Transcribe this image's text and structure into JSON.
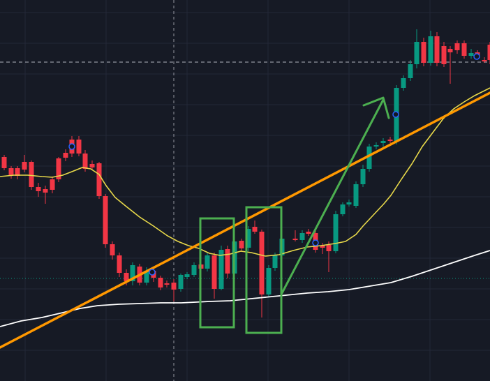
{
  "chart_data": {
    "type": "candlestick",
    "title": "",
    "xlabel": "",
    "ylabel": "",
    "grid": true,
    "ylim": [
      0,
      546
    ],
    "colors": {
      "background": "#161a25",
      "grid": "#232838",
      "up": "#089981",
      "down": "#f23645",
      "ma_fast": "#e8d94a",
      "ma_slow": "#ffffff",
      "trendline": "#ff9800",
      "annotation": "#4caf50",
      "crosshair": "#9598a1",
      "marker": "#2962ff"
    },
    "candles": [
      [
        6,
        225,
        241,
        222,
        244
      ],
      [
        16,
        241,
        251,
        238,
        256
      ],
      [
        25,
        241,
        252,
        238,
        257
      ],
      [
        35,
        232,
        243,
        222,
        247
      ],
      [
        45,
        232,
        268,
        230,
        272
      ],
      [
        55,
        268,
        274,
        262,
        282
      ],
      [
        65,
        271,
        276,
        266,
        292
      ],
      [
        75,
        257,
        272,
        253,
        277
      ],
      [
        84,
        227,
        257,
        225,
        261
      ],
      [
        94,
        219,
        226,
        214,
        231
      ],
      [
        103,
        200,
        220,
        195,
        225
      ],
      [
        113,
        200,
        220,
        195,
        224
      ],
      [
        122,
        220,
        242,
        215,
        246
      ],
      [
        132,
        235,
        240,
        230,
        244
      ],
      [
        142,
        234,
        281,
        232,
        285
      ],
      [
        151,
        281,
        350,
        278,
        355
      ],
      [
        161,
        350,
        366,
        346,
        372
      ],
      [
        171,
        366,
        391,
        362,
        397
      ],
      [
        181,
        391,
        403,
        386,
        409
      ],
      [
        190,
        403,
        380,
        376,
        409
      ],
      [
        200,
        382,
        405,
        378,
        409
      ],
      [
        210,
        405,
        388,
        383,
        409
      ],
      [
        220,
        388,
        398,
        384,
        404
      ],
      [
        230,
        398,
        412,
        395,
        416
      ],
      [
        239,
        406,
        408,
        402,
        412
      ],
      [
        249,
        405,
        415,
        400,
        432
      ],
      [
        259,
        414,
        394,
        392,
        418
      ],
      [
        268,
        397,
        393,
        390,
        400
      ],
      [
        278,
        394,
        380,
        376,
        397
      ],
      [
        288,
        379,
        385,
        376,
        389
      ],
      [
        297,
        385,
        366,
        362,
        389
      ],
      [
        307,
        366,
        414,
        362,
        428
      ],
      [
        317,
        414,
        358,
        352,
        416
      ],
      [
        326,
        357,
        392,
        352,
        399
      ],
      [
        336,
        392,
        346,
        342,
        397
      ],
      [
        346,
        345,
        356,
        342,
        359
      ],
      [
        356,
        355,
        328,
        324,
        360
      ],
      [
        365,
        325,
        332,
        316,
        335
      ],
      [
        375,
        332,
        422,
        329,
        455
      ],
      [
        385,
        422,
        384,
        380,
        426
      ],
      [
        394,
        384,
        366,
        362,
        388
      ],
      [
        404,
        366,
        342,
        339,
        370
      ],
      [
        423,
        342,
        344,
        330,
        346
      ],
      [
        433,
        344,
        334,
        330,
        348
      ],
      [
        442,
        332,
        335,
        328,
        338
      ],
      [
        452,
        334,
        358,
        330,
        362
      ],
      [
        462,
        352,
        355,
        348,
        364
      ],
      [
        471,
        351,
        360,
        346,
        390
      ],
      [
        481,
        360,
        307,
        302,
        363
      ],
      [
        491,
        307,
        293,
        290,
        310
      ],
      [
        500,
        293,
        290,
        286,
        296
      ],
      [
        510,
        295,
        264,
        260,
        298
      ],
      [
        520,
        264,
        242,
        236,
        268
      ],
      [
        529,
        242,
        210,
        206,
        246
      ],
      [
        539,
        210,
        208,
        204,
        214
      ],
      [
        549,
        205,
        202,
        198,
        210
      ],
      [
        559,
        200,
        200,
        196,
        205
      ],
      [
        568,
        203,
        126,
        122,
        207
      ],
      [
        578,
        126,
        112,
        108,
        130
      ],
      [
        588,
        112,
        92,
        86,
        116
      ],
      [
        597,
        92,
        60,
        42,
        98
      ],
      [
        607,
        60,
        90,
        54,
        95
      ],
      [
        617,
        90,
        52,
        44,
        94
      ],
      [
        626,
        52,
        90,
        46,
        95
      ],
      [
        636,
        66,
        92,
        60,
        96
      ],
      [
        645,
        70,
        75,
        66,
        120
      ],
      [
        655,
        62,
        72,
        58,
        77
      ],
      [
        665,
        62,
        80,
        58,
        84
      ],
      [
        675,
        80,
        76,
        70,
        84
      ],
      [
        684,
        75,
        80,
        72,
        84
      ],
      [
        694,
        86,
        88,
        82,
        90
      ],
      [
        702,
        64,
        86,
        60,
        92
      ]
    ],
    "ma_fast": [
      [
        0,
        253
      ],
      [
        20,
        251
      ],
      [
        40,
        251
      ],
      [
        60,
        253
      ],
      [
        75,
        254
      ],
      [
        90,
        251
      ],
      [
        103,
        246
      ],
      [
        118,
        240
      ],
      [
        130,
        242
      ],
      [
        142,
        250
      ],
      [
        152,
        266
      ],
      [
        165,
        283
      ],
      [
        181,
        296
      ],
      [
        200,
        311
      ],
      [
        220,
        324
      ],
      [
        240,
        338
      ],
      [
        255,
        346
      ],
      [
        270,
        352
      ],
      [
        285,
        356
      ],
      [
        300,
        363
      ],
      [
        315,
        366
      ],
      [
        330,
        364
      ],
      [
        345,
        360
      ],
      [
        360,
        362
      ],
      [
        380,
        367
      ],
      [
        400,
        365
      ],
      [
        420,
        359
      ],
      [
        440,
        354
      ],
      [
        460,
        352
      ],
      [
        480,
        349
      ],
      [
        495,
        346
      ],
      [
        510,
        336
      ],
      [
        520,
        324
      ],
      [
        535,
        308
      ],
      [
        550,
        292
      ],
      [
        560,
        280
      ],
      [
        575,
        257
      ],
      [
        590,
        235
      ],
      [
        605,
        210
      ],
      [
        620,
        190
      ],
      [
        635,
        170
      ],
      [
        650,
        156
      ],
      [
        665,
        146
      ],
      [
        680,
        137
      ],
      [
        702,
        126
      ]
    ],
    "ma_slow": [
      [
        0,
        468
      ],
      [
        30,
        460
      ],
      [
        60,
        455
      ],
      [
        90,
        448
      ],
      [
        115,
        442
      ],
      [
        140,
        438
      ],
      [
        170,
        436
      ],
      [
        200,
        435
      ],
      [
        230,
        434
      ],
      [
        260,
        434
      ],
      [
        300,
        432
      ],
      [
        330,
        431
      ],
      [
        360,
        428
      ],
      [
        400,
        424
      ],
      [
        440,
        420
      ],
      [
        470,
        418
      ],
      [
        500,
        415
      ],
      [
        530,
        410
      ],
      [
        560,
        405
      ],
      [
        590,
        396
      ],
      [
        620,
        386
      ],
      [
        650,
        376
      ],
      [
        680,
        366
      ],
      [
        702,
        359
      ]
    ],
    "trendline": [
      [
        0,
        498
      ],
      [
        702,
        133
      ]
    ],
    "price_lines": {
      "dashed": 89,
      "dotted": 399
    },
    "crosshair_x": 249,
    "boxes": [
      [
        287,
        313,
        335,
        469
      ],
      [
        353,
        297,
        403,
        477
      ]
    ],
    "arrow": {
      "from": [
        404,
        420
      ],
      "to": [
        549,
        143
      ]
    },
    "markers": [
      [
        103,
        210
      ],
      [
        218,
        390
      ],
      [
        452,
        348
      ],
      [
        567,
        164
      ],
      [
        683,
        81
      ]
    ]
  }
}
